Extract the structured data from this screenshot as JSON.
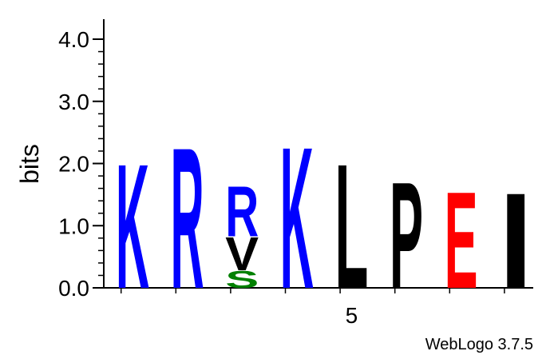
{
  "chart_data": {
    "type": "sequence-logo",
    "ylabel": "bits",
    "ylim": [
      0,
      4.0
    ],
    "y_ticks": [
      "0.0",
      "1.0",
      "2.0",
      "3.0",
      "4.0"
    ],
    "x_ticks": [
      {
        "position": 5,
        "label": "5"
      }
    ],
    "credit": "WebLogo 3.7.5",
    "colors": {
      "basic": "#0000ff",
      "polar": "#008000",
      "hydrophobic": "#000000",
      "acidic": "#ff0000"
    },
    "positions": [
      {
        "position": 1,
        "letters": [
          {
            "letter": "K",
            "bits": 2.05,
            "color": "#0000ff"
          }
        ]
      },
      {
        "position": 2,
        "letters": [
          {
            "letter": "R",
            "bits": 2.32,
            "color": "#0000ff"
          }
        ]
      },
      {
        "position": 3,
        "letters": [
          {
            "letter": "S",
            "bits": 0.28,
            "color": "#008000"
          },
          {
            "letter": "V",
            "bits": 0.55,
            "color": "#000000"
          },
          {
            "letter": "R",
            "bits": 0.83,
            "color": "#0000ff"
          }
        ]
      },
      {
        "position": 4,
        "letters": [
          {
            "letter": "K",
            "bits": 2.33,
            "color": "#0000ff"
          }
        ]
      },
      {
        "position": 5,
        "letters": [
          {
            "letter": "L",
            "bits": 2.05,
            "color": "#000000"
          }
        ]
      },
      {
        "position": 6,
        "letters": [
          {
            "letter": "P",
            "bits": 1.75,
            "color": "#000000"
          }
        ]
      },
      {
        "position": 7,
        "letters": [
          {
            "letter": "E",
            "bits": 1.59,
            "color": "#ff0000"
          }
        ]
      },
      {
        "position": 8,
        "letters": [
          {
            "letter": "I",
            "bits": 1.57,
            "color": "#000000"
          }
        ]
      }
    ]
  }
}
